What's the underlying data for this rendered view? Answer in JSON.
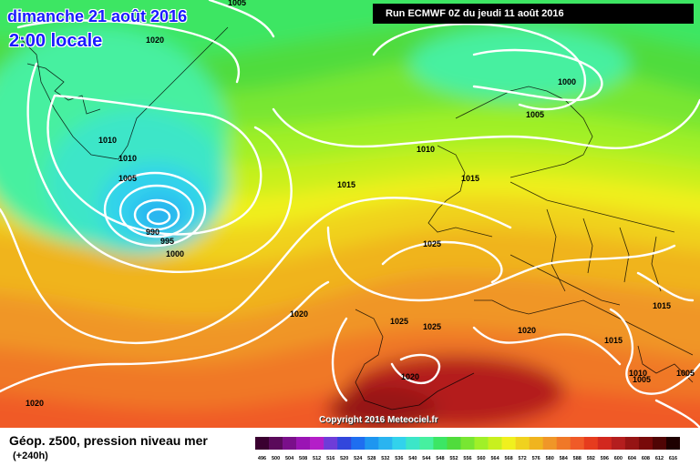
{
  "header": {
    "date_line": "dimanche 21 août 2016",
    "time_line": "2:00 locale",
    "run_info": "Run ECMWF 0Z du jeudi 11 août 2016"
  },
  "footer": {
    "legend_title": "Géop. z500, pression niveau mer",
    "lead_time": "(+240h)",
    "copyright": "Copyright 2016 Meteociel.fr"
  },
  "isobar_labels": [
    "1005",
    "1020",
    "1000",
    "1005",
    "1010",
    "1010",
    "1005",
    "990",
    "995",
    "1000",
    "1015",
    "1010",
    "1015",
    "1025",
    "1025",
    "1025",
    "1020",
    "1020",
    "1020",
    "1015",
    "1015",
    "1010",
    "1005",
    "1005",
    "1020"
  ],
  "scale": {
    "values": [
      "496",
      "500",
      "504",
      "508",
      "512",
      "516",
      "520",
      "524",
      "528",
      "532",
      "536",
      "540",
      "544",
      "548",
      "552",
      "556",
      "560",
      "564",
      "568",
      "572",
      "576",
      "580",
      "584",
      "588",
      "592",
      "596",
      "600",
      "604",
      "608",
      "612",
      "616"
    ],
    "colors": [
      "#3a0030",
      "#5a0a5a",
      "#7a0f8a",
      "#9a14b4",
      "#b41ec8",
      "#6e3cd8",
      "#3246dc",
      "#1e6ef0",
      "#1e96f0",
      "#2ab4f0",
      "#32d2ec",
      "#3ce6c8",
      "#46f0a0",
      "#3ce664",
      "#50dc3c",
      "#78e632",
      "#a0f028",
      "#c8f01e",
      "#f0f01e",
      "#f0d21e",
      "#f0b41e",
      "#f09628",
      "#f07828",
      "#f05a28",
      "#e63c1e",
      "#d2281e",
      "#b41e1e",
      "#961414",
      "#780a0a",
      "#500505",
      "#1e0000"
    ]
  }
}
